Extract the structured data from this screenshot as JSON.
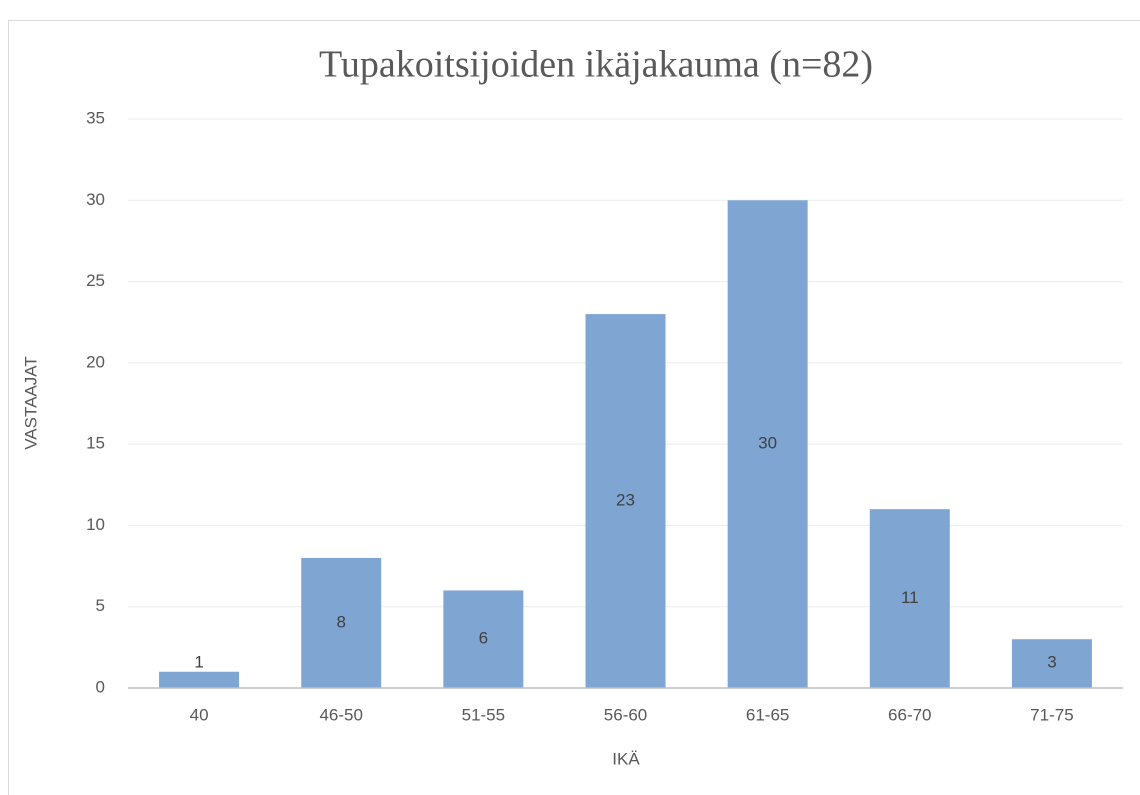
{
  "chart_data": {
    "type": "bar",
    "title": "Tupakoitsijoiden ikäjakauma (n=82)",
    "x_label": "IKÄ",
    "y_label": "VASTAAJAT",
    "categories": [
      "40",
      "46-50",
      "51-55",
      "56-60",
      "61-65",
      "66-70",
      "71-75"
    ],
    "values": [
      1,
      8,
      6,
      23,
      30,
      11,
      3
    ],
    "color": "#7fa6d3",
    "ylim": [
      0,
      35
    ],
    "yticks": [
      0,
      5,
      10,
      15,
      20,
      25,
      30,
      35
    ],
    "grid": true
  }
}
